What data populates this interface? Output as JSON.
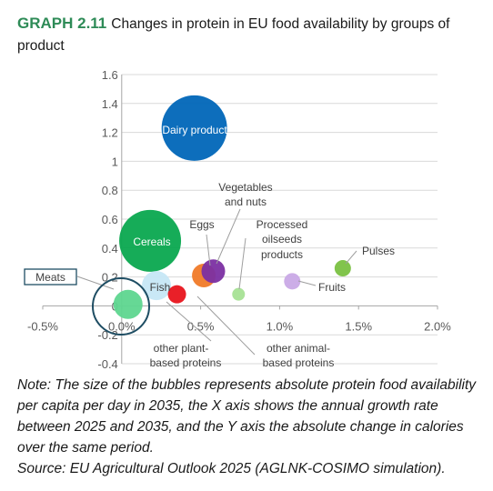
{
  "header": {
    "tag": "GRAPH 2.11",
    "title": "Changes in protein in EU food availability by groups of product"
  },
  "notes": {
    "note": "Note: The size of the bubbles represents absolute protein food availability per capita per day in 2035, the X axis shows the annual growth rate between 2025 and 2035, and the Y axis the absolute change in calories over the same period.",
    "source": "Source: EU Agricultural Outlook 2025 (AGLNK-COSIMO simulation)."
  },
  "colors": {
    "title_accent": "#2e8b57",
    "axis_text": "#595959",
    "gridline": "#d9d9d9"
  },
  "chart_data": {
    "type": "bubble",
    "title": "Changes in protein in EU food availability by groups of product",
    "xlim": [
      -0.005,
      0.02
    ],
    "ylim": [
      -0.4,
      1.6
    ],
    "x_ticks": [
      -0.005,
      0,
      0.005,
      0.01,
      0.015,
      0.02
    ],
    "x_tick_labels": [
      "-0.5%",
      "0.0%",
      "0.5%",
      "1.0%",
      "1.5%",
      "2.0%"
    ],
    "y_ticks": [
      -0.4,
      -0.2,
      0,
      0.2,
      0.4,
      0.6,
      0.8,
      1,
      1.2,
      1.4,
      1.6
    ],
    "y_tick_labels": [
      "-0.4",
      "-0.2",
      "0",
      "0.2",
      "0.4",
      "0.6",
      "0.8",
      "1",
      "1.2",
      "1.4",
      "1.6"
    ],
    "grid": "horizontal",
    "series": [
      {
        "label": "Dairy product",
        "x": 0.0046,
        "y": 1.23,
        "size": 36,
        "color": "#0066b8",
        "label_pos": "inside"
      },
      {
        "label": "Cereals",
        "x": 0.0018,
        "y": 0.45,
        "size": 34,
        "color": "#0aa84f",
        "label_pos": "inside"
      },
      {
        "label": "Meats",
        "x": 0.0004,
        "y": 0.01,
        "size": 16,
        "color": "#5ed68f",
        "label_pos": "boxed-left"
      },
      {
        "label": "Fish",
        "x": 0.0022,
        "y": 0.14,
        "size": 16,
        "color": "#c6e7f5",
        "label_pos": "inside"
      },
      {
        "label": "Eggs",
        "x": 0.0052,
        "y": 0.21,
        "size": 13,
        "color": "#f07a28",
        "label_pos": "above"
      },
      {
        "label": "Vegetables and nuts",
        "x": 0.0058,
        "y": 0.24,
        "size": 13,
        "color": "#7b2fa2",
        "label_pos": "above-right"
      },
      {
        "label": "Processed oilseeds products",
        "x": 0.0074,
        "y": 0.08,
        "size": 7,
        "color": "#a7e295",
        "label_pos": "above-right"
      },
      {
        "label": "Pulses",
        "x": 0.014,
        "y": 0.26,
        "size": 9,
        "color": "#7ac142",
        "label_pos": "right"
      },
      {
        "label": "Fruits",
        "x": 0.0108,
        "y": 0.17,
        "size": 9,
        "color": "#c9a9e6",
        "label_pos": "right"
      },
      {
        "label": "other plant-based proteins",
        "x": 0.0035,
        "y": 0.08,
        "size": 10,
        "color": "#e8141c",
        "label_pos": "below"
      },
      {
        "label": "other animal-based proteins",
        "x": 0.0052,
        "y": 0.21,
        "size": 0,
        "color": "#9e9e9e",
        "label_pos": "below-right"
      }
    ]
  },
  "labels": {
    "dairy": "Dairy product",
    "cereals": "Cereals",
    "meats": "Meats",
    "fish": "Fish",
    "eggs": "Eggs",
    "veg_line1": "Vegetables",
    "veg_line2": "and nuts",
    "oil_line1": "Processed",
    "oil_line2": "oilseeds",
    "oil_line3": "products",
    "pulses": "Pulses",
    "fruits": "Fruits",
    "plant_line1": "other plant-",
    "plant_line2": "based proteins",
    "animal_line1": "other animal-",
    "animal_line2": "based proteins"
  }
}
